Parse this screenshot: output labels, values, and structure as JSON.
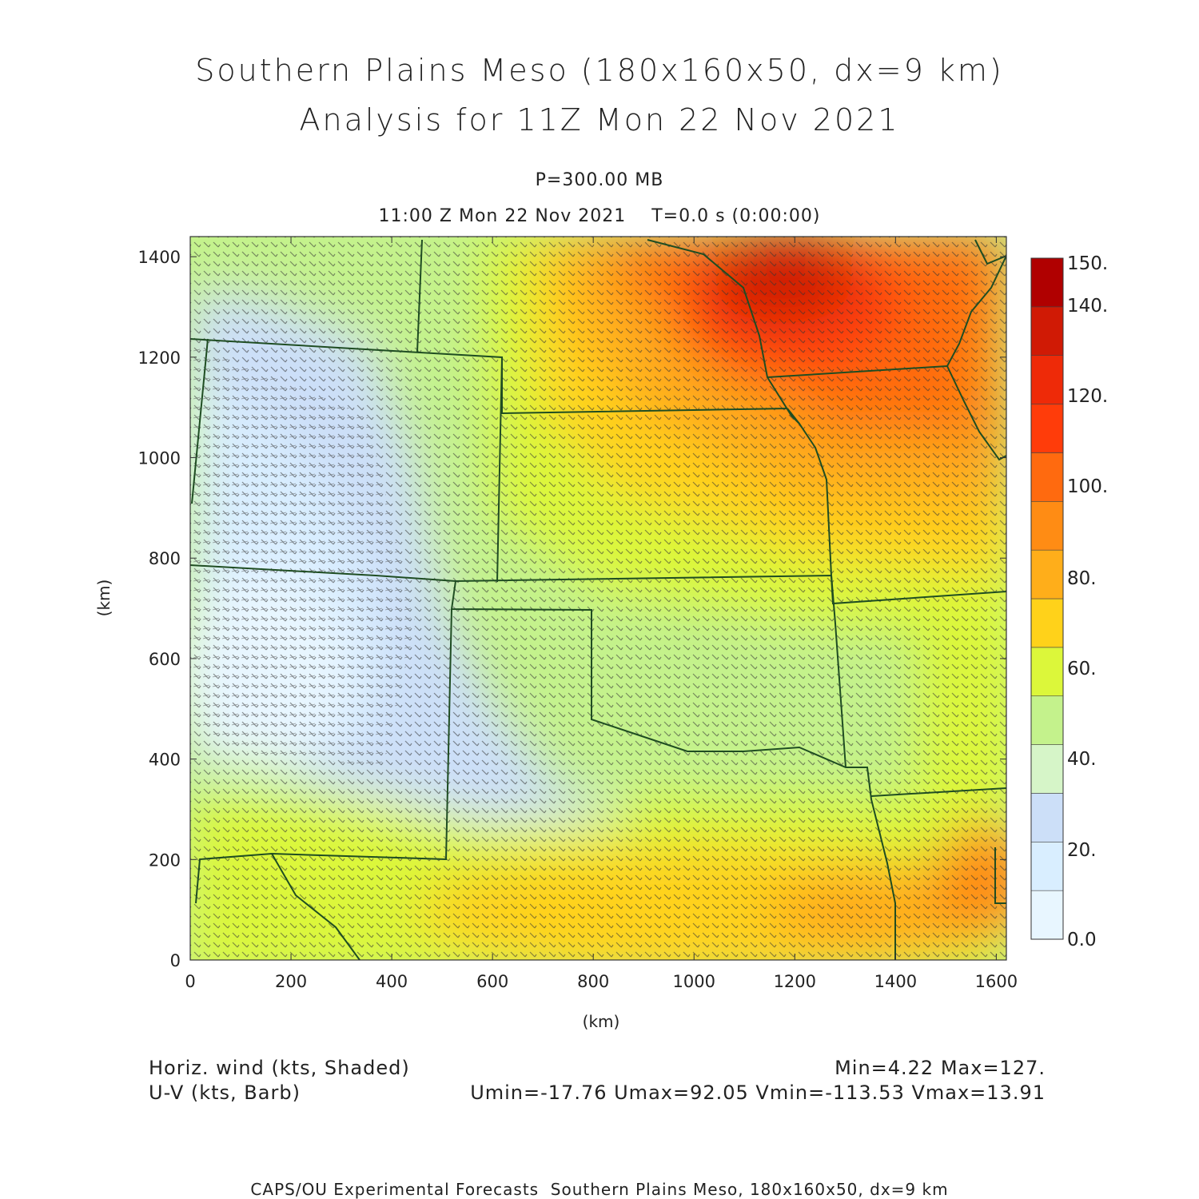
{
  "title": {
    "line1": "Southern Plains Meso (180x160x50, dx=9 km)",
    "line2": "Analysis for 11Z Mon 22 Nov 2021"
  },
  "level_label": "P=300.00 MB",
  "time_label": "11:00 Z Mon 22 Nov 2021    T=0.0 s (0:00:00)",
  "fields": {
    "shaded": "Horiz. wind (kts, Shaded)",
    "barb": "U-V (kts, Barb)"
  },
  "stats": {
    "minmax": "Min=4.22 Max=127.",
    "components": "Umin=-17.76 Umax=92.05 Vmin=-113.53 Vmax=13.91"
  },
  "footer": "CAPS/OU Experimental Forecasts  Southern Plains Meso, 180x160x50, dx=9 km",
  "map": {
    "xlabel": "(km)",
    "ylabel": "(km)",
    "xlim": [
      0,
      1620
    ],
    "ylim": [
      0,
      1440
    ],
    "xticks": [
      "0",
      "200",
      "400",
      "600",
      "800",
      "1000",
      "1200",
      "1400",
      "1600"
    ],
    "yticks": [
      "0",
      "200",
      "400",
      "600",
      "800",
      "1000",
      "1200",
      "1400"
    ],
    "border_color": "#1f4d22"
  },
  "colorbar": {
    "labels": [
      "0.0",
      "20.",
      "40.",
      "60.",
      "80.",
      "100.",
      "120.",
      "140.",
      "150."
    ],
    "colors": [
      "#e8f6ff",
      "#d9eeff",
      "#ccdff8",
      "#d6f5c8",
      "#c4f28c",
      "#dcf73a",
      "#ffd21a",
      "#ffae1a",
      "#ff8c14",
      "#ff6a0f",
      "#ff3c0a",
      "#ee2a08",
      "#d01a05",
      "#b00000"
    ]
  }
}
